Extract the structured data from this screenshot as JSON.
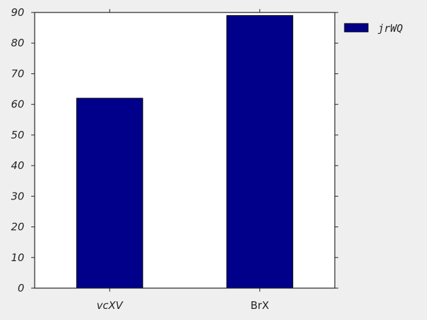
{
  "chart_data": {
    "type": "bar",
    "title": "",
    "xlabel": "",
    "ylabel": "",
    "categories": [
      "vcXV",
      "BrX"
    ],
    "series": [
      {
        "name": "jrWQ",
        "values": [
          62,
          89
        ],
        "color": "#00008b"
      }
    ],
    "ylim": [
      0,
      90
    ],
    "yticks": [
      0,
      10,
      20,
      30,
      40,
      50,
      60,
      70,
      80,
      90
    ],
    "grid": false,
    "legend": "outside-top-right",
    "colors": {
      "background": "#efefef",
      "plot_area": "#ffffff",
      "axis": "#222222",
      "bar": "#00008b"
    }
  }
}
